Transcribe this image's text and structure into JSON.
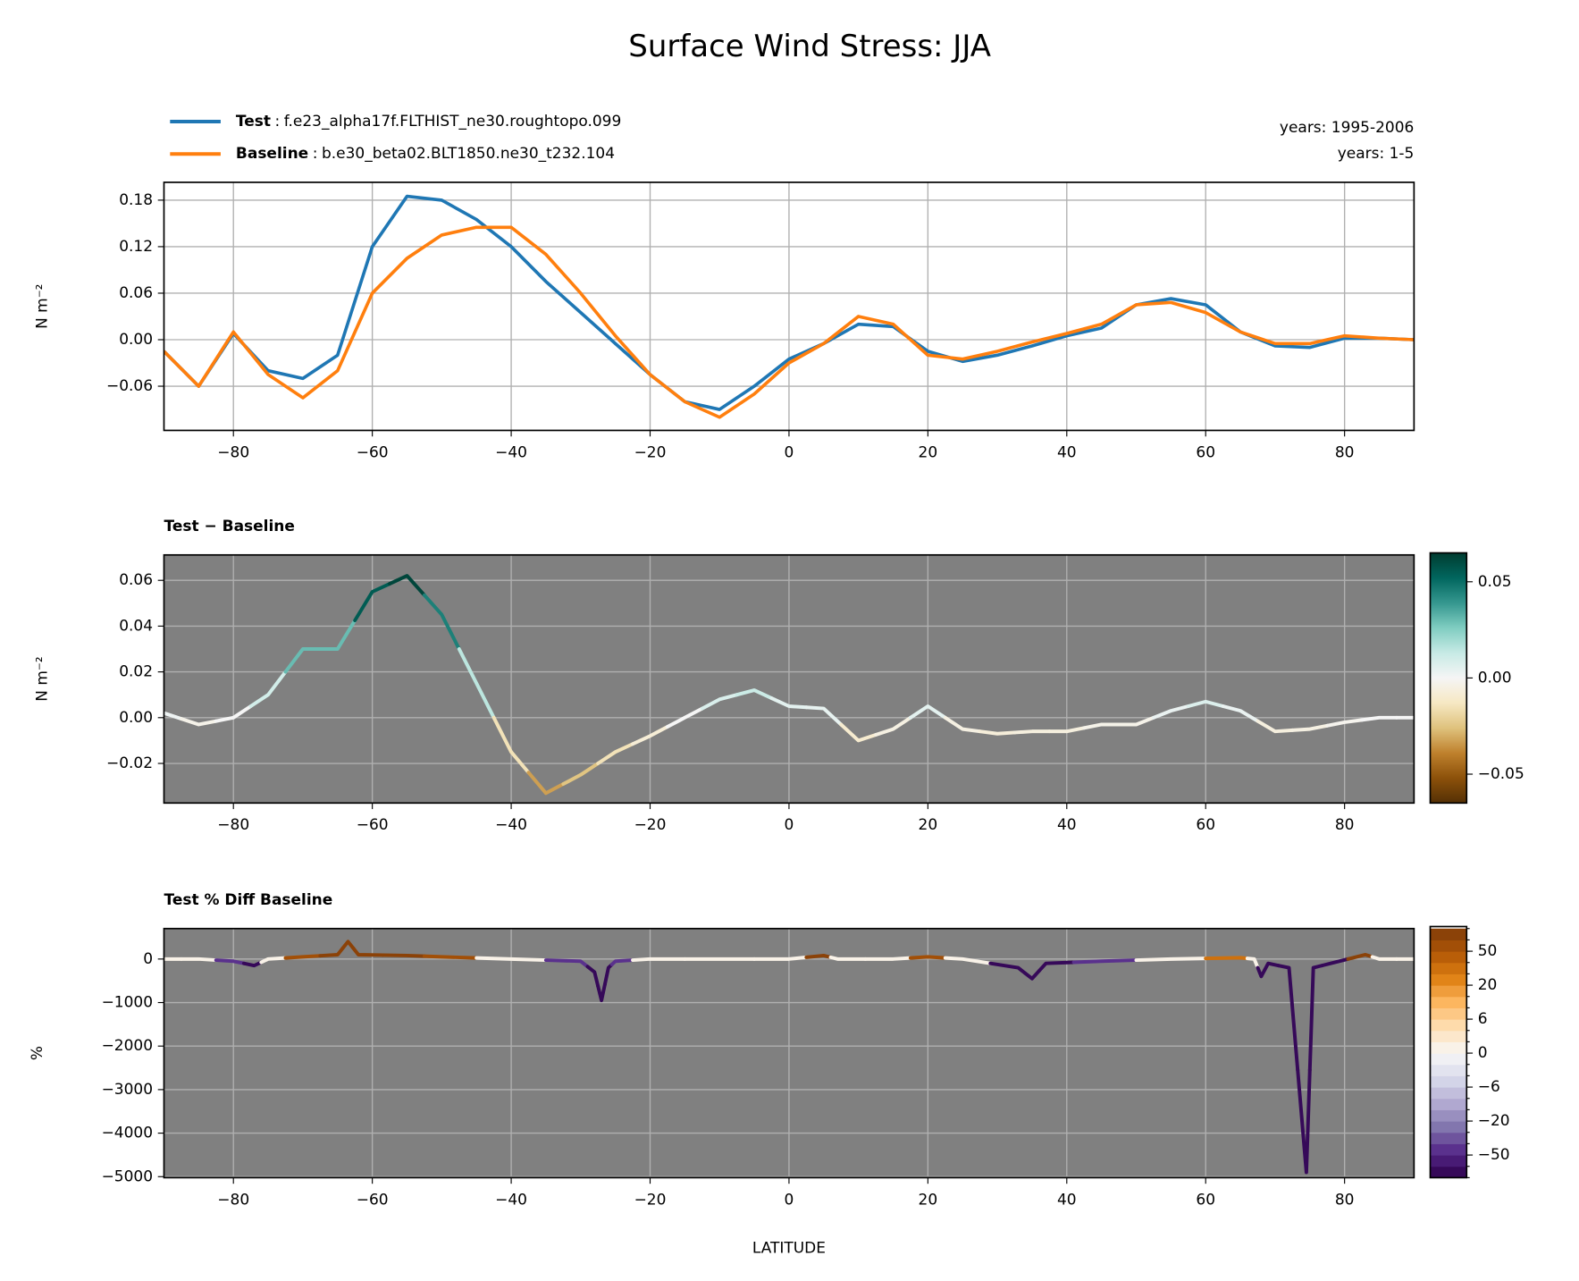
{
  "title": "Surface Wind Stress: JJA",
  "chart_data": [
    {
      "type": "line",
      "ylabel": "N m⁻²",
      "legend": "upper left",
      "label_separator": ":",
      "annotations": [
        "years: 1995-2006",
        "years: 1-5"
      ],
      "grid": true,
      "x": [
        -90,
        -85,
        -80,
        -75,
        -70,
        -65,
        -60,
        -55,
        -50,
        -45,
        -40,
        -35,
        -30,
        -25,
        -20,
        -15,
        -10,
        -5,
        0,
        5,
        10,
        15,
        20,
        25,
        30,
        35,
        40,
        45,
        50,
        55,
        60,
        65,
        70,
        75,
        80,
        85,
        90
      ],
      "series": [
        {
          "name": "Test",
          "description": "f.e23_alpha17f.FLTHIST_ne30.roughtopo.099",
          "color": "#1f77b4",
          "values": [
            -0.015,
            -0.06,
            0.008,
            -0.04,
            -0.05,
            -0.02,
            0.12,
            0.185,
            0.18,
            0.155,
            0.12,
            0.075,
            0.035,
            -0.005,
            -0.045,
            -0.08,
            -0.09,
            -0.06,
            -0.025,
            -0.005,
            0.02,
            0.017,
            -0.015,
            -0.028,
            -0.02,
            -0.008,
            0.005,
            0.015,
            0.045,
            0.053,
            0.045,
            0.01,
            -0.008,
            -0.01,
            0.002,
            0.002,
            0
          ]
        },
        {
          "name": "Baseline",
          "description": "b.e30_beta02.BLT1850.ne30_t232.104",
          "color": "#ff7f0e",
          "values": [
            -0.015,
            -0.06,
            0.01,
            -0.045,
            -0.075,
            -0.04,
            0.06,
            0.105,
            0.135,
            0.145,
            0.145,
            0.11,
            0.06,
            0.005,
            -0.045,
            -0.08,
            -0.1,
            -0.07,
            -0.03,
            -0.005,
            0.03,
            0.02,
            -0.02,
            -0.025,
            -0.015,
            -0.003,
            0.008,
            0.02,
            0.045,
            0.048,
            0.035,
            0.01,
            -0.005,
            -0.005,
            0.005,
            0.002,
            0
          ]
        }
      ],
      "xlim": [
        -90,
        90
      ],
      "xticks": [
        {
          "value": -80,
          "label": "−80"
        },
        {
          "value": -60,
          "label": "−60"
        },
        {
          "value": -40,
          "label": "−40"
        },
        {
          "value": -20,
          "label": "−20"
        },
        0,
        20,
        40,
        60,
        80
      ],
      "ylim": [
        -0.117,
        0.203
      ],
      "yticks": [
        {
          "value": -0.06,
          "label": "−0.06"
        },
        {
          "value": 0,
          "label": "0.00"
        },
        0.06,
        0.12,
        0.18
      ]
    },
    {
      "type": "colored_line",
      "title": "Test − Baseline",
      "ylabel": "N m⁻²",
      "grid": true,
      "background": "#808080",
      "x": [
        -90,
        -85,
        -80,
        -75,
        -70,
        -65,
        -60,
        -55,
        -50,
        -45,
        -40,
        -35,
        -30,
        -25,
        -20,
        -15,
        -10,
        -5,
        0,
        5,
        10,
        15,
        20,
        25,
        30,
        35,
        40,
        45,
        50,
        55,
        60,
        65,
        70,
        75,
        80,
        85,
        90
      ],
      "values": [
        0.002,
        -0.003,
        0.0,
        0.01,
        0.03,
        0.03,
        0.055,
        0.062,
        0.045,
        0.015,
        -0.015,
        -0.033,
        -0.025,
        -0.015,
        -0.008,
        0.0,
        0.008,
        0.012,
        0.005,
        0.004,
        -0.01,
        -0.005,
        0.005,
        -0.005,
        -0.007,
        -0.006,
        -0.006,
        -0.003,
        -0.003,
        0.003,
        0.007,
        0.003,
        -0.006,
        -0.005,
        -0.002,
        0.0,
        0.0
      ],
      "cmap": [
        "#543005",
        "#8c510a",
        "#bf812d",
        "#dfc27d",
        "#f6e8c3",
        "#f5f5f5",
        "#c7eae5",
        "#80cdc1",
        "#35978f",
        "#01665e",
        "#003c30"
      ],
      "clim": [
        -0.065,
        0.065
      ],
      "colorbar_ticks": [
        {
          "value": -0.05,
          "label": "−0.05"
        },
        {
          "value": 0,
          "label": "0.00"
        },
        0.05
      ],
      "xlim": [
        -90,
        90
      ],
      "xticks": [
        {
          "value": -80,
          "label": "−80"
        },
        {
          "value": -60,
          "label": "−60"
        },
        {
          "value": -40,
          "label": "−40"
        },
        {
          "value": -20,
          "label": "−20"
        },
        0,
        20,
        40,
        60,
        80
      ],
      "ylim": [
        -0.0373,
        0.0711
      ],
      "yticks": [
        {
          "value": -0.02,
          "label": "−0.02"
        },
        {
          "value": 0,
          "label": "0.00"
        },
        0.02,
        0.04,
        0.06
      ]
    },
    {
      "type": "colored_line",
      "title": "Test % Diff Baseline",
      "ylabel": "%",
      "xlabel": "LATITUDE",
      "grid": true,
      "background": "#808080",
      "x": [
        -90,
        -85,
        -80,
        -77,
        -75,
        -70,
        -65,
        -63.5,
        -62,
        -55,
        -50,
        -40,
        -30,
        -28,
        -27,
        -26,
        -25,
        -20,
        -10,
        0,
        5,
        7,
        15,
        20,
        25,
        33,
        35,
        37,
        45,
        55,
        65,
        67,
        68,
        69,
        72,
        74.5,
        75.5,
        78,
        83,
        85,
        90
      ],
      "values": [
        0,
        0,
        -50,
        -150,
        0,
        50,
        100,
        400,
        100,
        80,
        50,
        0,
        -50,
        -300,
        -950,
        -200,
        -50,
        0,
        0,
        0,
        80,
        0,
        0,
        50,
        0,
        -200,
        -450,
        -100,
        -50,
        0,
        30,
        0,
        -400,
        -100,
        -200,
        -4900,
        -200,
        -100,
        100,
        0,
        0
      ],
      "cmap": [
        "#2d004b",
        "#542788",
        "#8073ac",
        "#b2abd2",
        "#d8daeb",
        "#f7f7f7",
        "#fee0b6",
        "#fdb863",
        "#e08214",
        "#b35806",
        "#7f3b08"
      ],
      "levels": [
        -100,
        -75,
        -50,
        -40,
        -30,
        -20,
        -15,
        -10,
        -6,
        -4,
        -2,
        0,
        2,
        4,
        6,
        10,
        15,
        20,
        30,
        40,
        50,
        75,
        100
      ],
      "colorbar_ticks": [
        {
          "value": -50,
          "label": "−50"
        },
        {
          "value": -20,
          "label": "−20"
        },
        {
          "value": -6,
          "label": "−6"
        },
        0,
        6,
        20,
        50
      ],
      "xlim": [
        -90,
        90
      ],
      "xticks": [
        {
          "value": -80,
          "label": "−80"
        },
        {
          "value": -60,
          "label": "−60"
        },
        {
          "value": -40,
          "label": "−40"
        },
        {
          "value": -20,
          "label": "−20"
        },
        0,
        20,
        40,
        60,
        80
      ],
      "ylim": [
        -5023,
        700
      ],
      "yticks": [
        {
          "value": -5000,
          "label": "−5000"
        },
        {
          "value": -4000,
          "label": "−4000"
        },
        {
          "value": -3000,
          "label": "−3000"
        },
        {
          "value": -2000,
          "label": "−2000"
        },
        {
          "value": -1000,
          "label": "−1000"
        },
        0
      ]
    }
  ]
}
